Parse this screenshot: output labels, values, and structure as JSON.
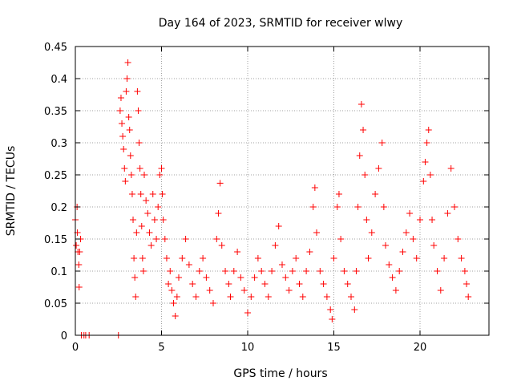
{
  "chart_data": {
    "type": "scatter",
    "title": "Day 164 of 2023, SRMTID for receiver wlwy",
    "xlabel": "GPS time / hours",
    "ylabel": "SRMTID / TECUs",
    "xlim": [
      0,
      24
    ],
    "ylim": [
      0,
      0.45
    ],
    "xticks": [
      0,
      5,
      10,
      15,
      20
    ],
    "yticks": [
      0,
      0.05,
      0.1,
      0.15,
      0.2,
      0.25,
      0.3,
      0.35,
      0.4,
      0.45
    ],
    "xtick_labels": [
      "0",
      "5",
      "10",
      "15",
      "20"
    ],
    "ytick_labels": [
      "0",
      "0.05",
      "0.1",
      "0.15",
      "0.2",
      "0.25",
      "0.3",
      "0.35",
      "0.4",
      "0.45"
    ],
    "grid": true,
    "marker": "+",
    "color": "#ff0000",
    "series": [
      {
        "name": "SRMTID",
        "points": [
          [
            0.0,
            0.18
          ],
          [
            0.05,
            0.14
          ],
          [
            0.1,
            0.2
          ],
          [
            0.12,
            0.16
          ],
          [
            0.15,
            0.13
          ],
          [
            0.2,
            0.11
          ],
          [
            0.22,
            0.075
          ],
          [
            0.25,
            0.13
          ],
          [
            0.3,
            0.15
          ],
          [
            0.35,
            0.0
          ],
          [
            0.5,
            0.0
          ],
          [
            0.6,
            0.0
          ],
          [
            0.8,
            0.0
          ],
          [
            2.5,
            0.0
          ],
          [
            2.6,
            0.35
          ],
          [
            2.65,
            0.37
          ],
          [
            2.7,
            0.33
          ],
          [
            2.75,
            0.31
          ],
          [
            2.8,
            0.29
          ],
          [
            2.85,
            0.26
          ],
          [
            2.9,
            0.24
          ],
          [
            2.95,
            0.38
          ],
          [
            3.0,
            0.4
          ],
          [
            3.05,
            0.425
          ],
          [
            3.1,
            0.34
          ],
          [
            3.15,
            0.32
          ],
          [
            3.2,
            0.28
          ],
          [
            3.25,
            0.25
          ],
          [
            3.3,
            0.22
          ],
          [
            3.35,
            0.18
          ],
          [
            3.4,
            0.12
          ],
          [
            3.45,
            0.09
          ],
          [
            3.5,
            0.06
          ],
          [
            3.55,
            0.16
          ],
          [
            3.6,
            0.38
          ],
          [
            3.65,
            0.35
          ],
          [
            3.7,
            0.3
          ],
          [
            3.75,
            0.26
          ],
          [
            3.8,
            0.22
          ],
          [
            3.85,
            0.17
          ],
          [
            3.9,
            0.12
          ],
          [
            3.95,
            0.1
          ],
          [
            4.0,
            0.25
          ],
          [
            4.1,
            0.21
          ],
          [
            4.2,
            0.19
          ],
          [
            4.3,
            0.16
          ],
          [
            4.4,
            0.14
          ],
          [
            4.5,
            0.22
          ],
          [
            4.6,
            0.18
          ],
          [
            4.7,
            0.15
          ],
          [
            4.8,
            0.2
          ],
          [
            4.9,
            0.25
          ],
          [
            5.0,
            0.26
          ],
          [
            5.05,
            0.22
          ],
          [
            5.1,
            0.18
          ],
          [
            5.2,
            0.15
          ],
          [
            5.3,
            0.12
          ],
          [
            5.4,
            0.08
          ],
          [
            5.5,
            0.1
          ],
          [
            5.6,
            0.07
          ],
          [
            5.7,
            0.05
          ],
          [
            5.8,
            0.03
          ],
          [
            5.9,
            0.06
          ],
          [
            6.0,
            0.09
          ],
          [
            6.2,
            0.12
          ],
          [
            6.4,
            0.15
          ],
          [
            6.6,
            0.11
          ],
          [
            6.8,
            0.08
          ],
          [
            7.0,
            0.06
          ],
          [
            7.2,
            0.1
          ],
          [
            7.4,
            0.12
          ],
          [
            7.6,
            0.09
          ],
          [
            7.8,
            0.07
          ],
          [
            8.0,
            0.05
          ],
          [
            8.2,
            0.15
          ],
          [
            8.3,
            0.19
          ],
          [
            8.4,
            0.237
          ],
          [
            8.5,
            0.14
          ],
          [
            8.7,
            0.1
          ],
          [
            8.9,
            0.08
          ],
          [
            9.0,
            0.06
          ],
          [
            9.2,
            0.1
          ],
          [
            9.4,
            0.13
          ],
          [
            9.6,
            0.09
          ],
          [
            9.8,
            0.07
          ],
          [
            10.0,
            0.035
          ],
          [
            10.2,
            0.06
          ],
          [
            10.4,
            0.09
          ],
          [
            10.6,
            0.12
          ],
          [
            10.8,
            0.1
          ],
          [
            11.0,
            0.08
          ],
          [
            11.2,
            0.06
          ],
          [
            11.4,
            0.1
          ],
          [
            11.6,
            0.14
          ],
          [
            11.8,
            0.17
          ],
          [
            12.0,
            0.11
          ],
          [
            12.2,
            0.09
          ],
          [
            12.4,
            0.07
          ],
          [
            12.6,
            0.1
          ],
          [
            12.8,
            0.12
          ],
          [
            13.0,
            0.08
          ],
          [
            13.2,
            0.06
          ],
          [
            13.4,
            0.1
          ],
          [
            13.6,
            0.13
          ],
          [
            13.8,
            0.2
          ],
          [
            13.9,
            0.23
          ],
          [
            14.0,
            0.16
          ],
          [
            14.2,
            0.1
          ],
          [
            14.4,
            0.08
          ],
          [
            14.6,
            0.06
          ],
          [
            14.8,
            0.04
          ],
          [
            14.9,
            0.025
          ],
          [
            15.0,
            0.12
          ],
          [
            15.2,
            0.2
          ],
          [
            15.3,
            0.22
          ],
          [
            15.4,
            0.15
          ],
          [
            15.6,
            0.1
          ],
          [
            15.8,
            0.08
          ],
          [
            16.0,
            0.06
          ],
          [
            16.2,
            0.04
          ],
          [
            16.3,
            0.1
          ],
          [
            16.4,
            0.2
          ],
          [
            16.5,
            0.28
          ],
          [
            16.6,
            0.36
          ],
          [
            16.7,
            0.32
          ],
          [
            16.8,
            0.25
          ],
          [
            16.9,
            0.18
          ],
          [
            17.0,
            0.12
          ],
          [
            17.2,
            0.16
          ],
          [
            17.4,
            0.22
          ],
          [
            17.6,
            0.26
          ],
          [
            17.8,
            0.3
          ],
          [
            17.9,
            0.2
          ],
          [
            18.0,
            0.14
          ],
          [
            18.2,
            0.11
          ],
          [
            18.4,
            0.09
          ],
          [
            18.6,
            0.07
          ],
          [
            18.8,
            0.1
          ],
          [
            19.0,
            0.13
          ],
          [
            19.2,
            0.16
          ],
          [
            19.4,
            0.19
          ],
          [
            19.6,
            0.15
          ],
          [
            19.8,
            0.12
          ],
          [
            20.0,
            0.18
          ],
          [
            20.2,
            0.24
          ],
          [
            20.3,
            0.27
          ],
          [
            20.4,
            0.3
          ],
          [
            20.5,
            0.32
          ],
          [
            20.6,
            0.25
          ],
          [
            20.7,
            0.18
          ],
          [
            20.8,
            0.14
          ],
          [
            21.0,
            0.1
          ],
          [
            21.2,
            0.07
          ],
          [
            21.4,
            0.12
          ],
          [
            21.6,
            0.19
          ],
          [
            21.8,
            0.26
          ],
          [
            22.0,
            0.2
          ],
          [
            22.2,
            0.15
          ],
          [
            22.4,
            0.12
          ],
          [
            22.6,
            0.1
          ],
          [
            22.7,
            0.08
          ],
          [
            22.8,
            0.06
          ]
        ]
      }
    ]
  }
}
